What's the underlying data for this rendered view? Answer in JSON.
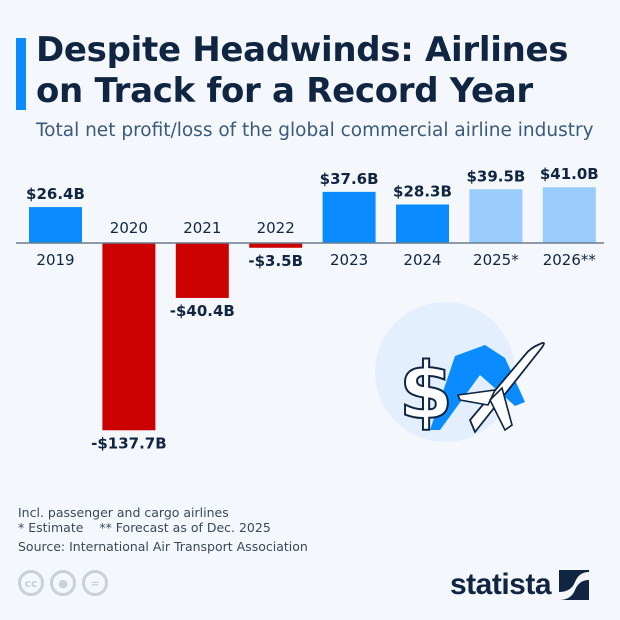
{
  "header": {
    "title": "Despite Headwinds: Airlines on Track for a Record Year",
    "subtitle": "Total net profit/loss of the global commercial airline industry"
  },
  "chart_data": {
    "type": "bar",
    "categories": [
      "2019",
      "2020",
      "2021",
      "2022",
      "2023",
      "2024",
      "2025*",
      "2026**"
    ],
    "values": [
      26.4,
      -137.7,
      -40.4,
      -3.5,
      37.6,
      28.3,
      39.5,
      41.0
    ],
    "labels": [
      "$26.4B",
      "-$137.7B",
      "-$40.4B",
      "-$3.5B",
      "$37.6B",
      "$28.3B",
      "$39.5B",
      "$41.0B"
    ],
    "unit": "billion USD",
    "colors": {
      "actual": "#0a8cff",
      "estimate": "#99ccfa",
      "loss": "#cc0000"
    },
    "kinds": [
      "actual",
      "loss",
      "loss",
      "loss",
      "actual",
      "actual",
      "estimate",
      "estimate"
    ],
    "grid": false
  },
  "footer": {
    "note1": "Incl. passenger and cargo airlines",
    "note2": "* Estimate    ** Forecast as of Dec. 2025",
    "source": "Source: International Air Transport Association",
    "cc_icons": [
      "cc-icon",
      "by-icon",
      "nd-icon"
    ],
    "brand": "statista"
  }
}
